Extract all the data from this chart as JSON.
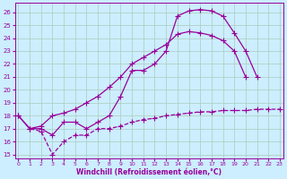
{
  "xlabel": "Windchill (Refroidissement éolien,°C)",
  "bg_color": "#cceeff",
  "line_color": "#990099",
  "grid_color": "#aaccbb",
  "xlim": [
    -0.3,
    23.3
  ],
  "ylim": [
    14.7,
    26.7
  ],
  "yticks": [
    15,
    16,
    17,
    18,
    19,
    20,
    21,
    22,
    23,
    24,
    25,
    26
  ],
  "xticks": [
    0,
    1,
    2,
    3,
    4,
    5,
    6,
    7,
    8,
    9,
    10,
    11,
    12,
    13,
    14,
    15,
    16,
    17,
    18,
    19,
    20,
    21,
    22,
    23
  ],
  "line1_x": [
    0,
    1,
    2,
    3,
    4,
    5,
    6,
    7,
    8,
    9,
    10,
    11,
    12,
    13,
    14,
    15,
    16,
    17,
    18,
    19,
    20,
    21,
    22,
    23
  ],
  "line1_y": [
    18,
    17,
    17,
    16.5,
    17.5,
    17.5,
    17,
    17.5,
    18,
    19.5,
    21.5,
    21.5,
    22,
    23,
    25.7,
    26.1,
    26.2,
    26.1,
    25.7,
    24.4,
    23.0,
    21.0,
    null,
    null
  ],
  "line2_x": [
    0,
    1,
    2,
    3,
    4,
    5,
    6,
    7,
    8,
    9,
    10,
    11,
    12,
    13,
    14,
    15,
    16,
    17,
    18,
    19,
    20,
    21,
    22,
    23
  ],
  "line2_y": [
    18,
    17,
    17.2,
    18,
    18.2,
    18.5,
    19,
    19.5,
    20.2,
    21,
    22,
    22.5,
    23,
    23.5,
    24.3,
    24.5,
    24.4,
    24.2,
    23.8,
    23.0,
    21.0,
    null,
    null,
    null
  ],
  "line3_x": [
    0,
    1,
    2,
    3,
    4,
    5,
    6,
    7,
    8,
    9,
    10,
    11,
    12,
    13,
    14,
    15,
    16,
    17,
    18,
    19,
    20,
    21,
    22,
    23
  ],
  "line3_y": [
    18,
    17,
    16.8,
    15,
    16,
    16.5,
    16.5,
    17,
    17.0,
    17.2,
    17.5,
    17.7,
    17.8,
    18.0,
    18.1,
    18.2,
    18.3,
    18.3,
    18.4,
    18.4,
    18.4,
    18.5,
    18.5,
    18.5
  ]
}
